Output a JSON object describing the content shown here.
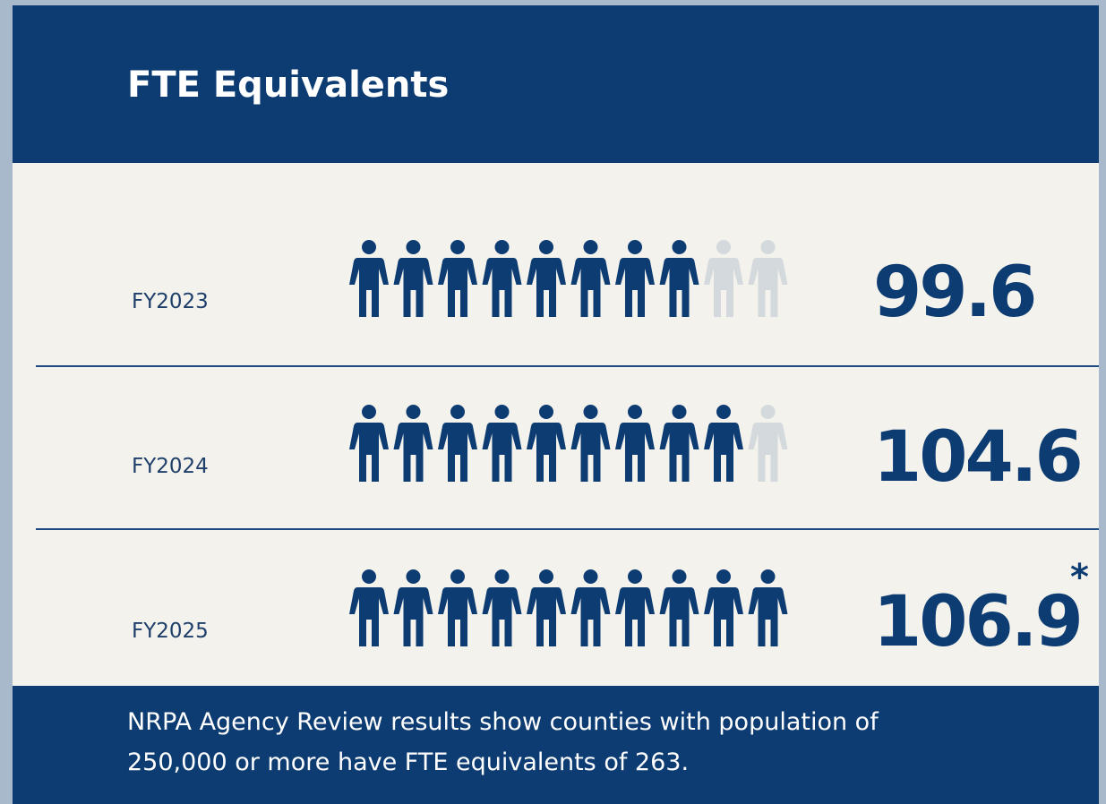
{
  "header": {
    "title": "FTE Equivalents"
  },
  "rows": [
    {
      "label": "FY2023",
      "value": "99.6"
    },
    {
      "label": "FY2024",
      "value": "104.6"
    },
    {
      "label": "FY2025",
      "value": "106.9",
      "note_mark": "*"
    }
  ],
  "footer": {
    "lines": [
      "NRPA Agency Review results show counties with population of",
      "250,000 or more have FTE equivalents of 263."
    ]
  }
}
